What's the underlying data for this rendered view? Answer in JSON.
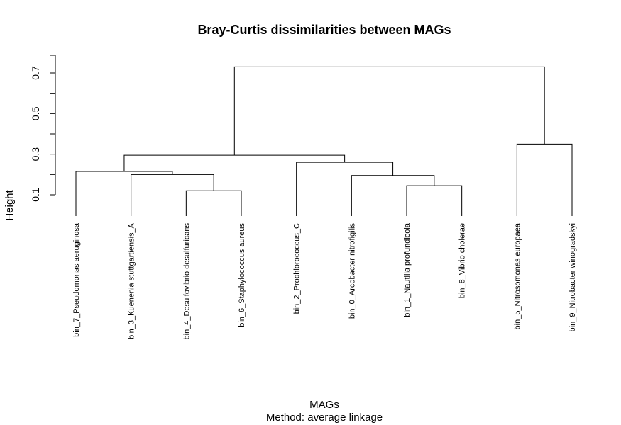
{
  "chart_data": {
    "type": "dendrogram",
    "title": "Bray-Curtis dissimilarities between MAGs",
    "xlabel": "MAGs",
    "subtitle": "Method: average linkage",
    "ylabel": "Height",
    "yticks": [
      0.1,
      0.3,
      0.5,
      0.7
    ],
    "ylim": [
      0.0,
      0.75
    ],
    "leaves": [
      "bin_7_Pseudomonas aeruginosa",
      "bin_3_Kuenenia stuttgartiensis_A",
      "bin_4_Desulfovibrio desulfuricans",
      "bin_6_Staphylococcus aureus",
      "bin_2_Prochlorococcus_C",
      "bin_0_Arcobacter nitrofigilis",
      "bin_1_Nautilia profundicola",
      "bin_8_Vibrio cholerae",
      "bin_5_Nitrosomonas europaea",
      "bin_9_Nitrobacter winogradskyi"
    ],
    "merges": [
      {
        "left": -3,
        "right": -4,
        "height": 0.12
      },
      {
        "left": -2,
        "right": 1,
        "height": 0.2
      },
      {
        "left": -1,
        "right": 2,
        "height": 0.215
      },
      {
        "left": -7,
        "right": -8,
        "height": 0.145
      },
      {
        "left": -6,
        "right": 4,
        "height": 0.195
      },
      {
        "left": -5,
        "right": 5,
        "height": 0.26
      },
      {
        "left": 3,
        "right": 6,
        "height": 0.295
      },
      {
        "left": -9,
        "right": -10,
        "height": 0.35
      },
      {
        "left": 7,
        "right": 8,
        "height": 0.73
      }
    ]
  }
}
